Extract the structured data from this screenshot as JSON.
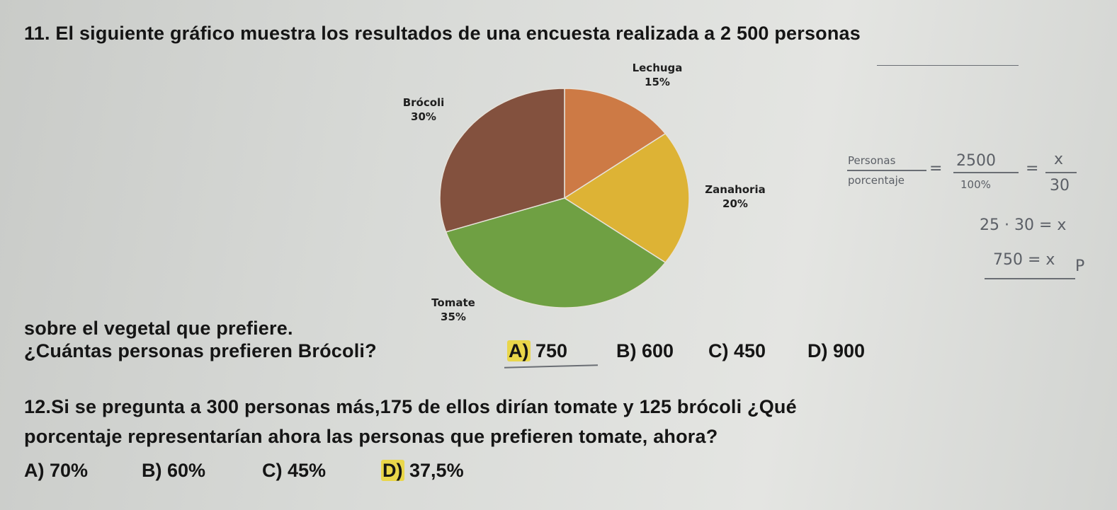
{
  "q11": {
    "title": "11. El siguiente gráfico muestra los resultados de una encuesta realizada a 2 500 personas",
    "subtitle": "sobre el vegetal que prefiere.",
    "question": "¿Cuántas personas prefieren Brócoli?",
    "options": [
      {
        "letter": "A)",
        "value": "750",
        "highlighted": true
      },
      {
        "letter": "B)",
        "value": "600",
        "highlighted": false
      },
      {
        "letter": "C)",
        "value": "450",
        "highlighted": false
      },
      {
        "letter": "D)",
        "value": "900",
        "highlighted": false
      }
    ]
  },
  "chart_data": {
    "type": "pie",
    "categories": [
      "Lechuga",
      "Zanahoria",
      "Tomate",
      "Brócoli"
    ],
    "values": [
      15,
      20,
      35,
      30
    ],
    "labels": [
      "15%",
      "20%",
      "35%",
      "30%"
    ],
    "colors": [
      "#cd7a45",
      "#ddb335",
      "#6fa043",
      "#83513e"
    ]
  },
  "handwriting": {
    "line1_left_top": "Personas",
    "line1_left_bottom": "porcentaje",
    "line1_mid_top": "2500",
    "line1_mid_bottom": "100%",
    "line1_right_top": "x",
    "line1_right_bottom": "30",
    "eq_sign1": "=",
    "eq_sign2": "=",
    "line2": "25 · 30 = x",
    "line3": "750 = x",
    "mark": "P"
  },
  "q12": {
    "text_line1": "12.Si se pregunta a 300 personas más,175 de ellos dirían tomate y 125 brócoli ¿Qué",
    "text_line2": "porcentaje representarían ahora las personas que prefieren tomate, ahora?",
    "options": [
      {
        "letter": "A)",
        "value": "70%",
        "highlighted": false
      },
      {
        "letter": "B)",
        "value": "60%",
        "highlighted": false
      },
      {
        "letter": "C)",
        "value": "45%",
        "highlighted": false
      },
      {
        "letter": "D)",
        "value": "37,5%",
        "highlighted": true
      }
    ]
  }
}
